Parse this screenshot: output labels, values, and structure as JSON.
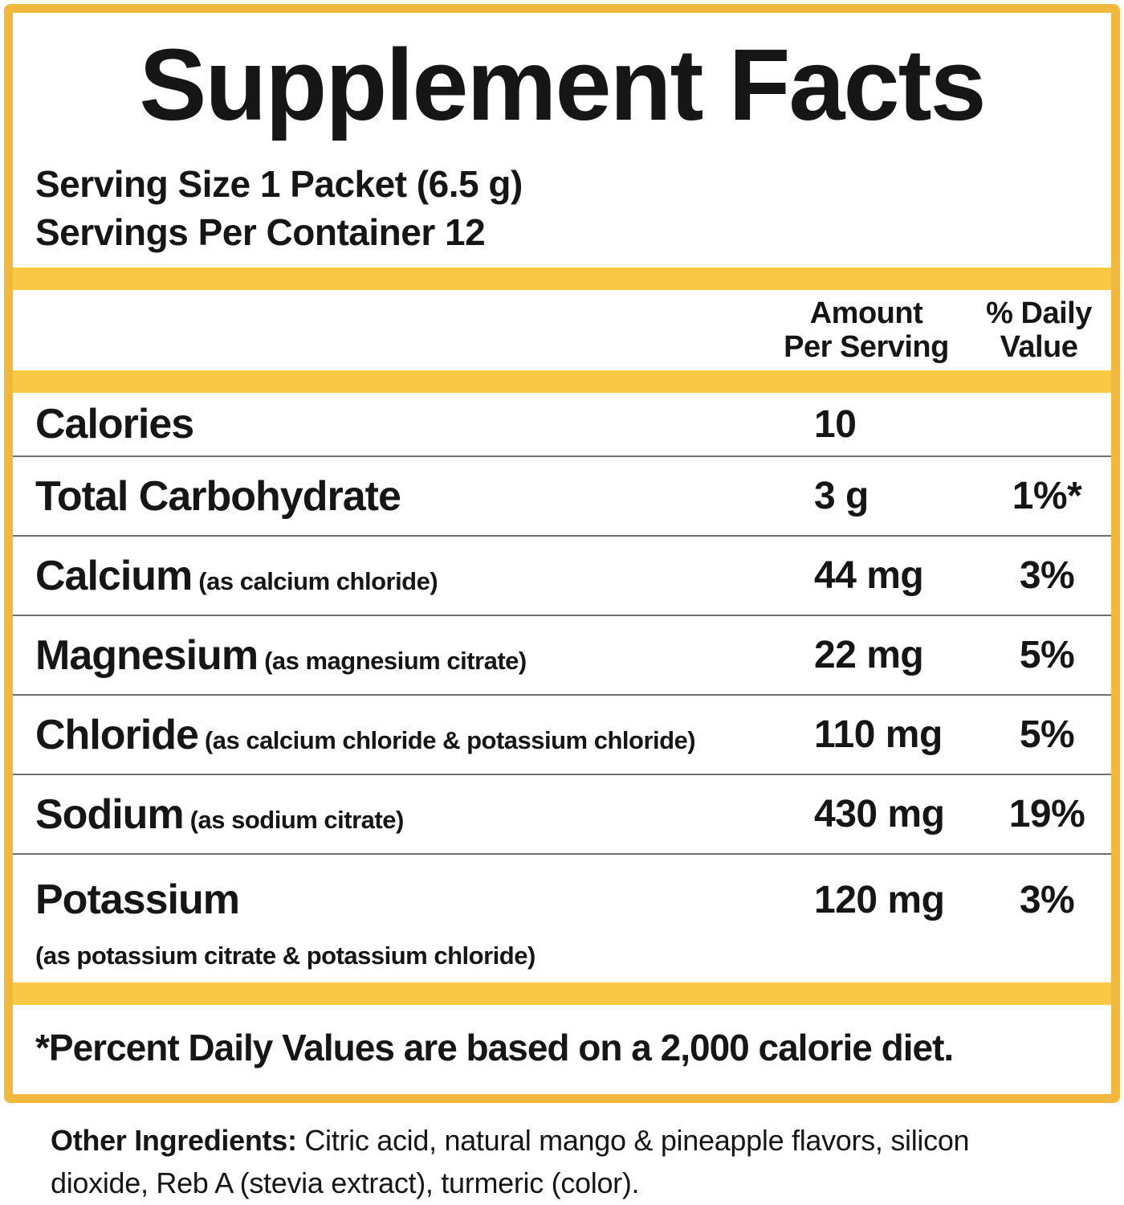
{
  "panel": {
    "title": "Supplement Facts",
    "serving_size": "Serving Size 1 Packet (6.5 g)",
    "servings_per_container": "Servings Per Container 12",
    "columns": {
      "amount_line1": "Amount",
      "amount_line2": "Per Serving",
      "dv_line1": "% Daily",
      "dv_line2": "Value"
    },
    "rows": [
      {
        "name": "Calories",
        "detail": "",
        "amount": "10",
        "dv": ""
      },
      {
        "name": "Total Carbohydrate",
        "detail": "",
        "amount": "3 g",
        "dv": "1%*"
      },
      {
        "name": "Calcium",
        "detail": "(as calcium chloride)",
        "amount": "44 mg",
        "dv": "3%"
      },
      {
        "name": "Magnesium",
        "detail": "(as magnesium citrate)",
        "amount": "22 mg",
        "dv": "5%"
      },
      {
        "name": "Chloride",
        "detail": "(as calcium chloride & potassium chloride)",
        "amount": "110 mg",
        "dv": "5%"
      },
      {
        "name": "Sodium",
        "detail": "(as sodium citrate)",
        "amount": "430 mg",
        "dv": "19%"
      },
      {
        "name": "Potassium",
        "detail": "(as potassium citrate & potassium chloride)",
        "amount": "120 mg",
        "dv": "3%"
      }
    ],
    "footnote": "*Percent Daily Values are based on a 2,000 calorie diet.",
    "other_ingredients": {
      "label": "Other Ingredients:",
      "line1_rest": " Citric acid, natural mango & pineapple flavors, silicon",
      "line2": "dioxide, Reb A (stevia extract), turmeric (color)."
    },
    "colors": {
      "accent_yellow": "#fbc846",
      "border_yellow": "#f0b83e",
      "divider_gray": "#6f6f6f",
      "text_black": "#161616"
    }
  }
}
